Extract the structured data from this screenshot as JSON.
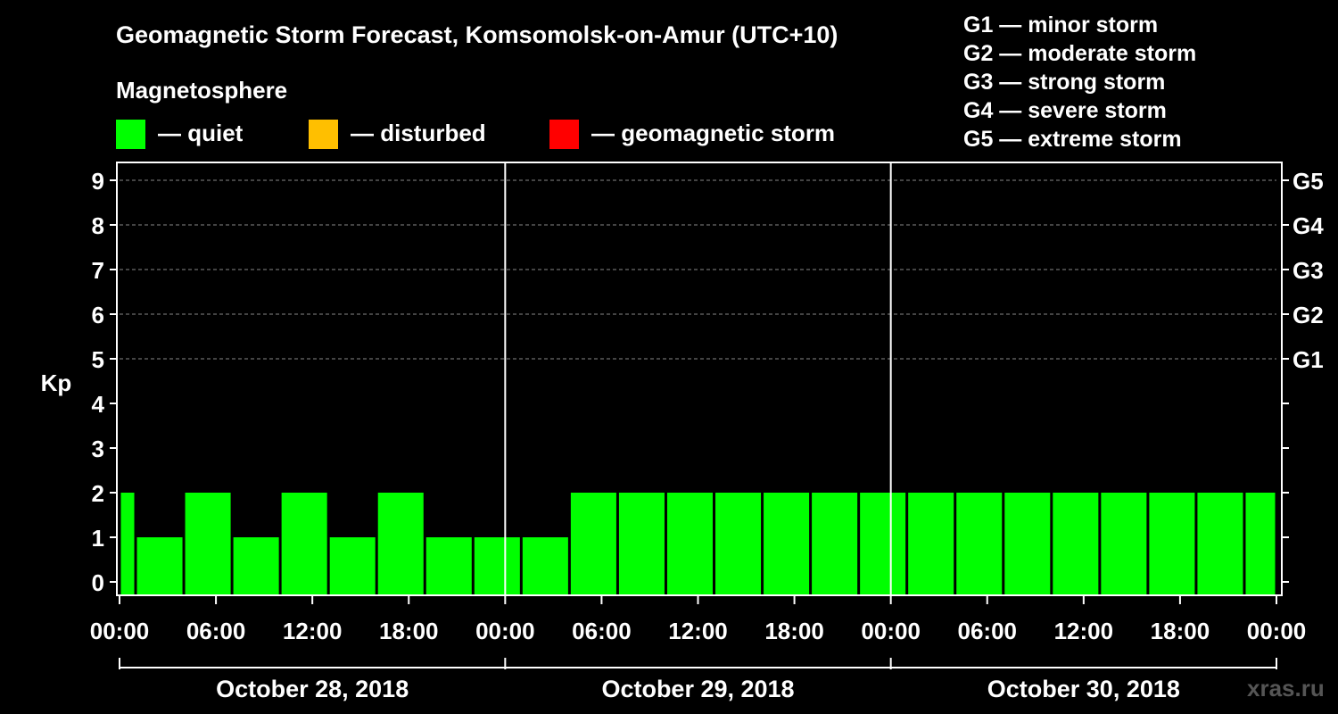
{
  "title": "Geomagnetic Storm Forecast, Komsomolsk-on-Amur (UTC+10)",
  "legend": {
    "heading": "Magnetosphere",
    "items": [
      {
        "label": "— quiet",
        "color": "#00ff00"
      },
      {
        "label": "— disturbed",
        "color": "#ffbf00"
      },
      {
        "label": "— geomagnetic storm",
        "color": "#ff0000"
      }
    ]
  },
  "storm_scale": [
    "G1 — minor storm",
    "G2 — moderate storm",
    "G3 — strong storm",
    "G4 — severe storm",
    "G5 — extreme storm"
  ],
  "watermark": "xras.ru",
  "colors": {
    "quiet": "#00ff00",
    "disturbed": "#ffbf00",
    "storm": "#ff0000",
    "grid": "#888888",
    "axis": "#ffffff"
  },
  "chart_data": {
    "type": "bar",
    "ylabel": "Kp",
    "ylim": [
      0,
      9
    ],
    "yticks": [
      "0",
      "1",
      "2",
      "3",
      "4",
      "5",
      "6",
      "7",
      "8",
      "9"
    ],
    "right_ticks": [
      {
        "kp": 5,
        "label": "G1"
      },
      {
        "kp": 6,
        "label": "G2"
      },
      {
        "kp": 7,
        "label": "G3"
      },
      {
        "kp": 8,
        "label": "G4"
      },
      {
        "kp": 9,
        "label": "G5"
      }
    ],
    "x_range_hours": [
      0,
      72
    ],
    "xticks": [
      {
        "hour": 0,
        "label": "00:00"
      },
      {
        "hour": 6,
        "label": "06:00"
      },
      {
        "hour": 12,
        "label": "12:00"
      },
      {
        "hour": 18,
        "label": "18:00"
      },
      {
        "hour": 24,
        "label": "00:00"
      },
      {
        "hour": 30,
        "label": "06:00"
      },
      {
        "hour": 36,
        "label": "12:00"
      },
      {
        "hour": 42,
        "label": "18:00"
      },
      {
        "hour": 48,
        "label": "00:00"
      },
      {
        "hour": 54,
        "label": "06:00"
      },
      {
        "hour": 60,
        "label": "12:00"
      },
      {
        "hour": 66,
        "label": "18:00"
      },
      {
        "hour": 72,
        "label": "00:00"
      }
    ],
    "days": [
      {
        "label": "October 28, 2018",
        "start_hour": 0,
        "end_hour": 24
      },
      {
        "label": "October 29, 2018",
        "start_hour": 24,
        "end_hour": 48
      },
      {
        "label": "October 30, 2018",
        "start_hour": 48,
        "end_hour": 72
      }
    ],
    "day_separators_hours": [
      24,
      48
    ],
    "bars": [
      {
        "start_hour": 0,
        "end_hour": 1,
        "kp": 2
      },
      {
        "start_hour": 1,
        "end_hour": 4,
        "kp": 1
      },
      {
        "start_hour": 4,
        "end_hour": 7,
        "kp": 2
      },
      {
        "start_hour": 7,
        "end_hour": 10,
        "kp": 1
      },
      {
        "start_hour": 10,
        "end_hour": 13,
        "kp": 2
      },
      {
        "start_hour": 13,
        "end_hour": 16,
        "kp": 1
      },
      {
        "start_hour": 16,
        "end_hour": 19,
        "kp": 2
      },
      {
        "start_hour": 19,
        "end_hour": 22,
        "kp": 1
      },
      {
        "start_hour": 22,
        "end_hour": 25,
        "kp": 1
      },
      {
        "start_hour": 25,
        "end_hour": 28,
        "kp": 1
      },
      {
        "start_hour": 28,
        "end_hour": 31,
        "kp": 2
      },
      {
        "start_hour": 31,
        "end_hour": 34,
        "kp": 2
      },
      {
        "start_hour": 34,
        "end_hour": 37,
        "kp": 2
      },
      {
        "start_hour": 37,
        "end_hour": 40,
        "kp": 2
      },
      {
        "start_hour": 40,
        "end_hour": 43,
        "kp": 2
      },
      {
        "start_hour": 43,
        "end_hour": 46,
        "kp": 2
      },
      {
        "start_hour": 46,
        "end_hour": 49,
        "kp": 2
      },
      {
        "start_hour": 49,
        "end_hour": 52,
        "kp": 2
      },
      {
        "start_hour": 52,
        "end_hour": 55,
        "kp": 2
      },
      {
        "start_hour": 55,
        "end_hour": 58,
        "kp": 2
      },
      {
        "start_hour": 58,
        "end_hour": 61,
        "kp": 2
      },
      {
        "start_hour": 61,
        "end_hour": 64,
        "kp": 2
      },
      {
        "start_hour": 64,
        "end_hour": 67,
        "kp": 2
      },
      {
        "start_hour": 67,
        "end_hour": 70,
        "kp": 2
      },
      {
        "start_hour": 70,
        "end_hour": 72,
        "kp": 2
      }
    ]
  }
}
